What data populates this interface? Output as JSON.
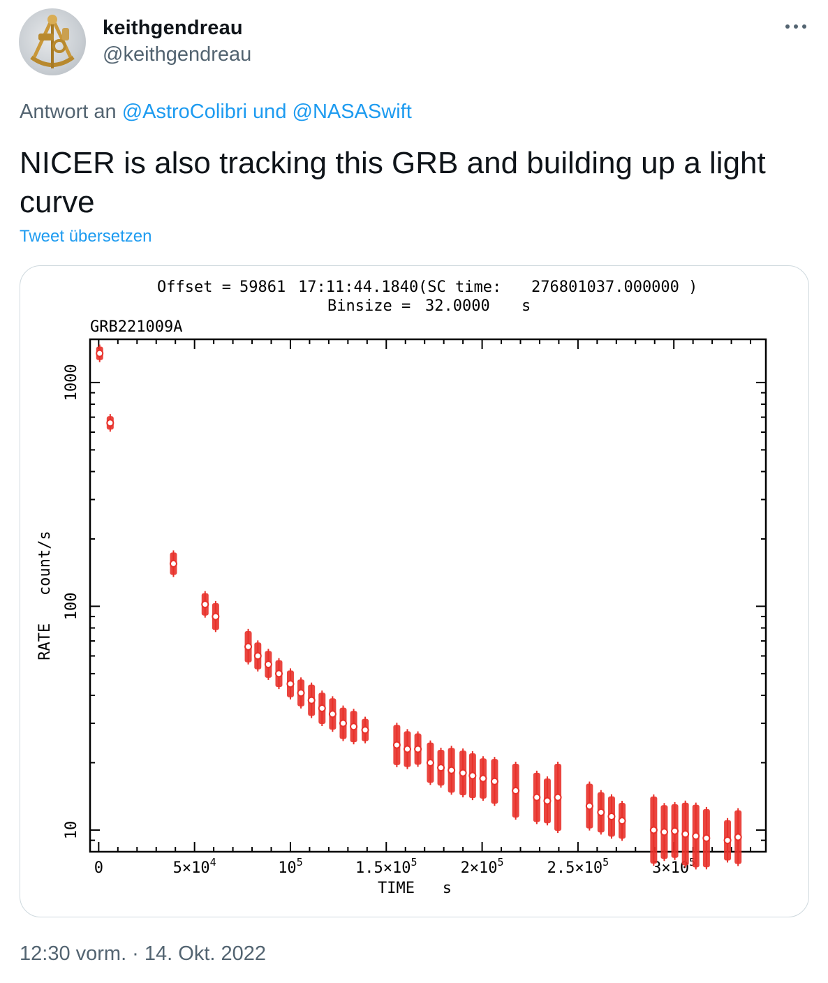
{
  "tweet": {
    "author_name": "keithgendreau",
    "author_handle": "@keithgendreau",
    "more_icon": "more-horizontal-icon",
    "reply_prefix": "Antwort an ",
    "reply_user1": "@AstroColibri",
    "reply_joiner": " und ",
    "reply_user2": "@NASASwift",
    "text": "NICER is also tracking this GRB and building up a light curve",
    "translate_label": "Tweet übersetzen",
    "timestamp": "12:30 vorm. · 14. Okt. 2022",
    "link_color": "#1d9bf0",
    "secondary_text_color": "#536471"
  },
  "chart_data": {
    "type": "scatter",
    "header_line1": {
      "offset_label": "Offset =",
      "offset_day": "59861",
      "offset_time": "17:11:44.1840",
      "sc_label": "(SC time:",
      "sc_value": "276801037.000000 )"
    },
    "header_line2": {
      "binsize_label": "Binsize =",
      "binsize_value": "32.0000",
      "binsize_unit": "s"
    },
    "source_label": "GRB221009A",
    "xlabel": "TIME   s",
    "ylabel": "RATE   count/s",
    "xlim": [
      -4500,
      348000
    ],
    "ylim": [
      8,
      1560
    ],
    "y_scale": "log",
    "x_ticks": [
      {
        "value": 0,
        "label": "0",
        "exp": ""
      },
      {
        "value": 50000,
        "label": "5×10",
        "exp": "4"
      },
      {
        "value": 100000,
        "label": "10",
        "exp": "5"
      },
      {
        "value": 150000,
        "label": "1.5×10",
        "exp": "5"
      },
      {
        "value": 200000,
        "label": "2×10",
        "exp": "5"
      },
      {
        "value": 250000,
        "label": "2.5×10",
        "exp": "5"
      },
      {
        "value": 300000,
        "label": "3×10",
        "exp": "5"
      }
    ],
    "y_ticks": [
      {
        "value": 10,
        "label": "10"
      },
      {
        "value": 100,
        "label": "100"
      },
      {
        "value": 1000,
        "label": "1000"
      }
    ],
    "marker_color": "#e8312a",
    "series": [
      {
        "x": [
          500,
          6000,
          39000,
          55500,
          61000,
          78000,
          83000,
          88500,
          94000,
          100000,
          105500,
          111000,
          116500,
          122000,
          127500,
          133000,
          139000,
          155500,
          161000,
          166500,
          173000,
          178500,
          184000,
          190000,
          195000,
          200500,
          206500,
          217500,
          228500,
          234000,
          239500,
          256000,
          262000,
          267500,
          273000,
          289500,
          295000,
          300500,
          306000,
          311500,
          317000,
          328000,
          333500
        ],
        "y": [
          1350,
          660,
          155,
          102,
          90,
          66,
          60,
          55,
          50,
          45,
          41,
          38,
          35,
          33,
          30,
          29,
          28,
          24,
          23,
          23,
          20,
          19,
          18.5,
          18,
          17.5,
          17,
          16.5,
          15,
          14,
          13.5,
          14,
          12.8,
          12,
          11.5,
          11,
          10,
          9.8,
          9.9,
          9.6,
          9.4,
          9.2,
          9.0,
          9.3
        ],
        "yerr": [
          0.03,
          0.03,
          0.05,
          0.05,
          0.06,
          0.07,
          0.06,
          0.06,
          0.06,
          0.06,
          0.06,
          0.07,
          0.07,
          0.07,
          0.07,
          0.07,
          0.05,
          0.09,
          0.08,
          0.07,
          0.09,
          0.08,
          0.1,
          0.1,
          0.1,
          0.09,
          0.1,
          0.12,
          0.11,
          0.1,
          0.15,
          0.1,
          0.09,
          0.09,
          0.08,
          0.15,
          0.12,
          0.12,
          0.14,
          0.14,
          0.13,
          0.09,
          0.12
        ]
      }
    ]
  }
}
